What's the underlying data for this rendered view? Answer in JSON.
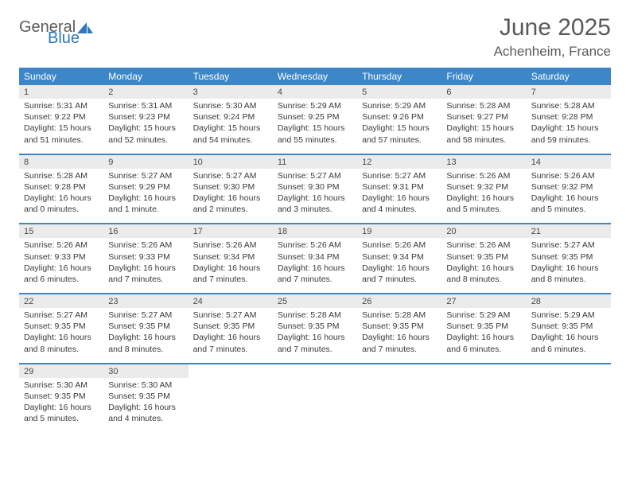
{
  "logo": {
    "text1": "General",
    "text2": "Blue"
  },
  "title": "June 2025",
  "location": "Achenheim, France",
  "style": {
    "header_bg": "#3d87c9",
    "header_fg": "#ffffff",
    "daynum_bg": "#ebebeb",
    "rule_color": "#3d87c9",
    "page_bg": "#ffffff",
    "text_color": "#303030",
    "title_fontsize": 30,
    "location_fontsize": 17,
    "dayhdr_fontsize": 12,
    "daynum_fontsize": 11,
    "detail_fontsize": 10.5,
    "columns": 7
  },
  "day_headers": [
    "Sunday",
    "Monday",
    "Tuesday",
    "Wednesday",
    "Thursday",
    "Friday",
    "Saturday"
  ],
  "weeks": [
    [
      {
        "n": "1",
        "sr": "5:31 AM",
        "ss": "9:22 PM",
        "dl": "15 hours and 51 minutes."
      },
      {
        "n": "2",
        "sr": "5:31 AM",
        "ss": "9:23 PM",
        "dl": "15 hours and 52 minutes."
      },
      {
        "n": "3",
        "sr": "5:30 AM",
        "ss": "9:24 PM",
        "dl": "15 hours and 54 minutes."
      },
      {
        "n": "4",
        "sr": "5:29 AM",
        "ss": "9:25 PM",
        "dl": "15 hours and 55 minutes."
      },
      {
        "n": "5",
        "sr": "5:29 AM",
        "ss": "9:26 PM",
        "dl": "15 hours and 57 minutes."
      },
      {
        "n": "6",
        "sr": "5:28 AM",
        "ss": "9:27 PM",
        "dl": "15 hours and 58 minutes."
      },
      {
        "n": "7",
        "sr": "5:28 AM",
        "ss": "9:28 PM",
        "dl": "15 hours and 59 minutes."
      }
    ],
    [
      {
        "n": "8",
        "sr": "5:28 AM",
        "ss": "9:28 PM",
        "dl": "16 hours and 0 minutes."
      },
      {
        "n": "9",
        "sr": "5:27 AM",
        "ss": "9:29 PM",
        "dl": "16 hours and 1 minute."
      },
      {
        "n": "10",
        "sr": "5:27 AM",
        "ss": "9:30 PM",
        "dl": "16 hours and 2 minutes."
      },
      {
        "n": "11",
        "sr": "5:27 AM",
        "ss": "9:30 PM",
        "dl": "16 hours and 3 minutes."
      },
      {
        "n": "12",
        "sr": "5:27 AM",
        "ss": "9:31 PM",
        "dl": "16 hours and 4 minutes."
      },
      {
        "n": "13",
        "sr": "5:26 AM",
        "ss": "9:32 PM",
        "dl": "16 hours and 5 minutes."
      },
      {
        "n": "14",
        "sr": "5:26 AM",
        "ss": "9:32 PM",
        "dl": "16 hours and 5 minutes."
      }
    ],
    [
      {
        "n": "15",
        "sr": "5:26 AM",
        "ss": "9:33 PM",
        "dl": "16 hours and 6 minutes."
      },
      {
        "n": "16",
        "sr": "5:26 AM",
        "ss": "9:33 PM",
        "dl": "16 hours and 7 minutes."
      },
      {
        "n": "17",
        "sr": "5:26 AM",
        "ss": "9:34 PM",
        "dl": "16 hours and 7 minutes."
      },
      {
        "n": "18",
        "sr": "5:26 AM",
        "ss": "9:34 PM",
        "dl": "16 hours and 7 minutes."
      },
      {
        "n": "19",
        "sr": "5:26 AM",
        "ss": "9:34 PM",
        "dl": "16 hours and 7 minutes."
      },
      {
        "n": "20",
        "sr": "5:26 AM",
        "ss": "9:35 PM",
        "dl": "16 hours and 8 minutes."
      },
      {
        "n": "21",
        "sr": "5:27 AM",
        "ss": "9:35 PM",
        "dl": "16 hours and 8 minutes."
      }
    ],
    [
      {
        "n": "22",
        "sr": "5:27 AM",
        "ss": "9:35 PM",
        "dl": "16 hours and 8 minutes."
      },
      {
        "n": "23",
        "sr": "5:27 AM",
        "ss": "9:35 PM",
        "dl": "16 hours and 8 minutes."
      },
      {
        "n": "24",
        "sr": "5:27 AM",
        "ss": "9:35 PM",
        "dl": "16 hours and 7 minutes."
      },
      {
        "n": "25",
        "sr": "5:28 AM",
        "ss": "9:35 PM",
        "dl": "16 hours and 7 minutes."
      },
      {
        "n": "26",
        "sr": "5:28 AM",
        "ss": "9:35 PM",
        "dl": "16 hours and 7 minutes."
      },
      {
        "n": "27",
        "sr": "5:29 AM",
        "ss": "9:35 PM",
        "dl": "16 hours and 6 minutes."
      },
      {
        "n": "28",
        "sr": "5:29 AM",
        "ss": "9:35 PM",
        "dl": "16 hours and 6 minutes."
      }
    ],
    [
      {
        "n": "29",
        "sr": "5:30 AM",
        "ss": "9:35 PM",
        "dl": "16 hours and 5 minutes."
      },
      {
        "n": "30",
        "sr": "5:30 AM",
        "ss": "9:35 PM",
        "dl": "16 hours and 4 minutes."
      },
      null,
      null,
      null,
      null,
      null
    ]
  ],
  "labels": {
    "sunrise": "Sunrise:",
    "sunset": "Sunset:",
    "daylight": "Daylight:"
  }
}
